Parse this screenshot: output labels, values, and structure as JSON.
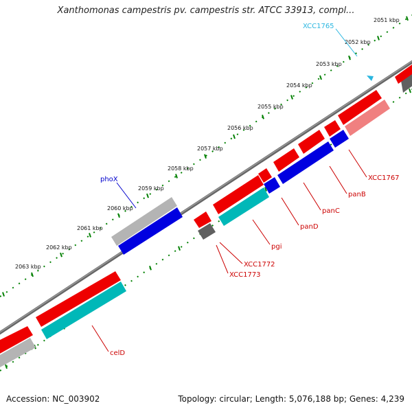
{
  "title": "Xanthomonas campestris pv. campestris str. ATCC 33913, compl...",
  "footer": {
    "accession": "Accession: NC_003902",
    "summary": "Topology: circular; Length: 5,076,188 bp; Genes: 4,239"
  },
  "colors": {
    "backbone": "#7d7d7d",
    "gene_red": "#ee0000",
    "gene_blue": "#0000e0",
    "gene_cyan": "#00b8b8",
    "gene_gray_light": "#b4b4b4",
    "gene_gray_dark": "#606060",
    "gene_pink": "#f08080",
    "tick_green": "#008000",
    "label_red": "#cc0000",
    "label_blue": "#0000cc",
    "label_cyan": "#2ab6e0"
  },
  "scale_kbp": [
    "2051 kbp",
    "2052 kbp",
    "2053 kbp",
    "2054 kbp",
    "2055 kbp",
    "2056 kbp",
    "2057 kbp",
    "2058 kbp",
    "2059 kbp",
    "2060 kbp",
    "2061 kbp",
    "2062 kbp",
    "2063 kbp"
  ],
  "gene_labels": [
    {
      "name": "XCC1765",
      "color": "cyan"
    },
    {
      "name": "phoX",
      "color": "blue"
    },
    {
      "name": "XCC1767",
      "color": "red"
    },
    {
      "name": "panB",
      "color": "red"
    },
    {
      "name": "panC",
      "color": "red"
    },
    {
      "name": "panD",
      "color": "red"
    },
    {
      "name": "pgi",
      "color": "red"
    },
    {
      "name": "XCC1772",
      "color": "red"
    },
    {
      "name": "XCC1773",
      "color": "red"
    },
    {
      "name": "celD",
      "color": "red"
    }
  ]
}
